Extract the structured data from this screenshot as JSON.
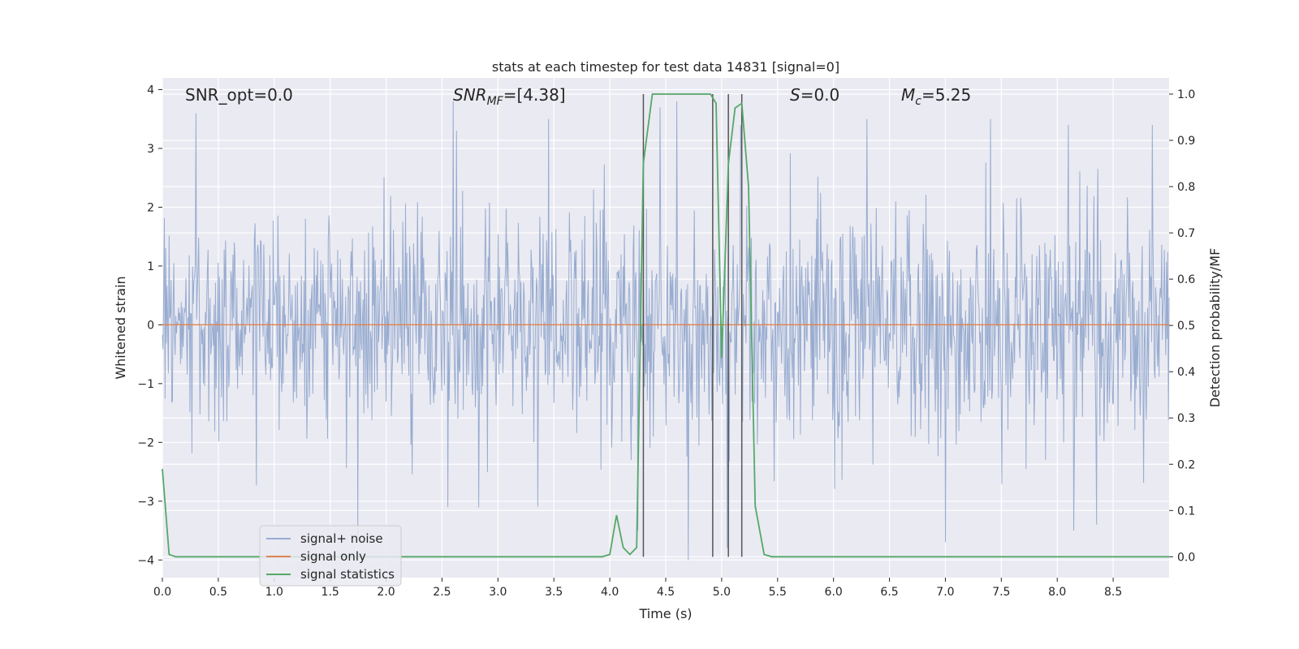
{
  "chart_data": {
    "type": "line",
    "title": "stats at each timestep for test data 14831 [signal=0]",
    "xlabel": "Time (s)",
    "ylabel": "Whitened strain",
    "y2label": "Detection probability/MF",
    "xlim": [
      0.0,
      9.0
    ],
    "ylim": [
      -4.3,
      4.2
    ],
    "y2lim": [
      -0.045,
      1.035
    ],
    "xticks": [
      "0.0",
      "0.5",
      "1.0",
      "1.5",
      "2.0",
      "2.5",
      "3.0",
      "3.5",
      "4.0",
      "4.5",
      "5.0",
      "5.5",
      "6.0",
      "6.5",
      "7.0",
      "7.5",
      "8.0",
      "8.5"
    ],
    "yticks": [
      "4",
      "3",
      "2",
      "1",
      "0",
      "−1",
      "−2",
      "−3",
      "−4"
    ],
    "y2ticks": [
      "1.0",
      "0.9",
      "0.8",
      "0.7",
      "0.6",
      "0.5",
      "0.4",
      "0.3",
      "0.2",
      "0.1",
      "0.0"
    ],
    "grid": true,
    "legend_position": "lower-left",
    "annotations": {
      "snr_opt": "SNR_opt=0.0",
      "snr_mf_main": "SNR",
      "snr_mf_sub": "MF",
      "snr_mf_value": "=[4.38]",
      "s_main": "S",
      "s_value": "=0.0",
      "mc_main": "M",
      "mc_sub": "c",
      "mc_value": "=5.25"
    },
    "vertical_markers": [
      4.3,
      4.92,
      5.06,
      5.18
    ],
    "series": [
      {
        "name": "signal+ noise",
        "color": "#98ACD0",
        "sampling": "noise",
        "seed": 14831,
        "x_range": [
          0.0,
          9.0
        ],
        "std": 0.95,
        "n_points": 1500,
        "peaks_upper_y": [
          3.6,
          3.8,
          3.5,
          3.7,
          3.8,
          3.4,
          3.5,
          3.5,
          3.4,
          3.4
        ],
        "peaks_upper_x": [
          0.3,
          2.6,
          3.45,
          4.45,
          4.6,
          5.17,
          6.3,
          7.4,
          8.1,
          8.85
        ],
        "peaks_lower_y": [
          -3.6,
          -3.1,
          -3.5,
          -4.0,
          -3.8,
          -3.7,
          -3.5,
          -3.4
        ],
        "peaks_lower_x": [
          1.75,
          2.55,
          4.25,
          4.7,
          5.05,
          7.0,
          8.15,
          8.35
        ]
      },
      {
        "name": "signal only",
        "color": "#DD8452",
        "x": [
          0.0,
          9.0
        ],
        "y": [
          0.0,
          0.0
        ]
      },
      {
        "name": "signal statistics",
        "color": "#55A868",
        "axis": "right",
        "x": [
          0.0,
          0.06,
          0.12,
          0.5,
          1.0,
          2.0,
          3.0,
          3.93,
          4.0,
          4.06,
          4.12,
          4.18,
          4.24,
          4.3,
          4.38,
          4.5,
          4.7,
          4.9,
          4.95,
          5.0,
          5.06,
          5.12,
          5.18,
          5.24,
          5.3,
          5.38,
          5.45,
          6.0,
          7.0,
          8.0,
          9.0
        ],
        "y": [
          0.19,
          0.005,
          0.0,
          0.0,
          0.0,
          0.0,
          0.0,
          0.0,
          0.005,
          0.09,
          0.02,
          0.005,
          0.02,
          0.85,
          1.0,
          1.0,
          1.0,
          1.0,
          0.98,
          0.43,
          0.85,
          0.97,
          0.98,
          0.8,
          0.11,
          0.005,
          0.0,
          0.0,
          0.0,
          0.0,
          0.0
        ]
      }
    ]
  },
  "colors": {
    "plot_background": "#EAEAF2",
    "grid": "#FFFFFF",
    "marker_line": "#555555",
    "text": "#262626"
  }
}
